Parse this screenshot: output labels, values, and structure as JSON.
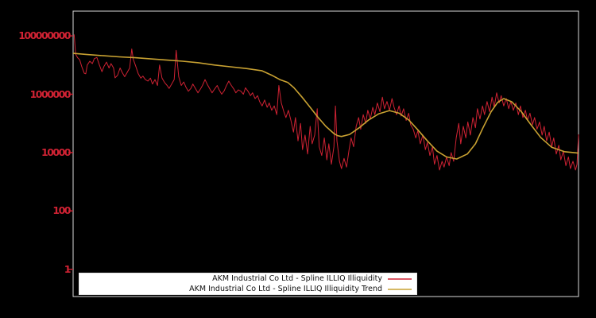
{
  "figure": {
    "background_color": "#000000",
    "plot_border_color": "#d9d9d9",
    "tick_color": "#cf2233",
    "legend_background": "#ffffff"
  },
  "chart_data": {
    "type": "line",
    "title": "",
    "xlabel": "",
    "ylabel": "",
    "yscale": "log",
    "x_axis_labels_visible": false,
    "grid": false,
    "legend_position": "lower center",
    "ylim_log10": [
      -0.94,
      8.84
    ],
    "yticks": [
      {
        "label": "100000000",
        "log10": 8
      },
      {
        "label": "1000000",
        "log10": 6
      },
      {
        "label": "10000",
        "log10": 4
      },
      {
        "label": "100",
        "log10": 2
      },
      {
        "label": "1",
        "log10": 0
      }
    ],
    "series": [
      {
        "name": "AKM Industrial Co Ltd - Spline ILLIQ Illiquidity",
        "color": "#cf2233",
        "width": 1,
        "points_t_log10": [
          [
            0.002,
            8.05
          ],
          [
            0.005,
            7.37
          ],
          [
            0.009,
            7.25
          ],
          [
            0.013,
            7.18
          ],
          [
            0.017,
            6.95
          ],
          [
            0.022,
            6.72
          ],
          [
            0.025,
            6.7
          ],
          [
            0.028,
            7.0
          ],
          [
            0.033,
            7.13
          ],
          [
            0.038,
            7.05
          ],
          [
            0.042,
            7.22
          ],
          [
            0.047,
            7.26
          ],
          [
            0.052,
            7.0
          ],
          [
            0.057,
            6.77
          ],
          [
            0.061,
            6.95
          ],
          [
            0.066,
            7.1
          ],
          [
            0.071,
            6.9
          ],
          [
            0.075,
            7.05
          ],
          [
            0.08,
            6.9
          ],
          [
            0.083,
            6.56
          ],
          [
            0.088,
            6.65
          ],
          [
            0.093,
            6.9
          ],
          [
            0.097,
            6.75
          ],
          [
            0.102,
            6.6
          ],
          [
            0.107,
            6.75
          ],
          [
            0.112,
            6.9
          ],
          [
            0.116,
            7.55
          ],
          [
            0.119,
            7.2
          ],
          [
            0.124,
            6.95
          ],
          [
            0.129,
            6.7
          ],
          [
            0.134,
            6.55
          ],
          [
            0.138,
            6.62
          ],
          [
            0.143,
            6.5
          ],
          [
            0.148,
            6.45
          ],
          [
            0.153,
            6.55
          ],
          [
            0.157,
            6.35
          ],
          [
            0.162,
            6.5
          ],
          [
            0.167,
            6.3
          ],
          [
            0.171,
            7.0
          ],
          [
            0.176,
            6.55
          ],
          [
            0.181,
            6.4
          ],
          [
            0.186,
            6.3
          ],
          [
            0.19,
            6.2
          ],
          [
            0.195,
            6.35
          ],
          [
            0.2,
            6.5
          ],
          [
            0.204,
            7.5
          ],
          [
            0.209,
            6.6
          ],
          [
            0.214,
            6.3
          ],
          [
            0.219,
            6.42
          ],
          [
            0.223,
            6.25
          ],
          [
            0.228,
            6.1
          ],
          [
            0.233,
            6.2
          ],
          [
            0.237,
            6.35
          ],
          [
            0.242,
            6.2
          ],
          [
            0.247,
            6.05
          ],
          [
            0.252,
            6.18
          ],
          [
            0.256,
            6.3
          ],
          [
            0.261,
            6.5
          ],
          [
            0.266,
            6.32
          ],
          [
            0.27,
            6.2
          ],
          [
            0.275,
            6.05
          ],
          [
            0.28,
            6.18
          ],
          [
            0.285,
            6.3
          ],
          [
            0.289,
            6.15
          ],
          [
            0.294,
            6.0
          ],
          [
            0.299,
            6.12
          ],
          [
            0.303,
            6.28
          ],
          [
            0.308,
            6.45
          ],
          [
            0.313,
            6.3
          ],
          [
            0.318,
            6.18
          ],
          [
            0.322,
            6.05
          ],
          [
            0.327,
            6.15
          ],
          [
            0.332,
            6.1
          ],
          [
            0.337,
            6.0
          ],
          [
            0.341,
            6.22
          ],
          [
            0.346,
            6.1
          ],
          [
            0.351,
            5.95
          ],
          [
            0.355,
            6.05
          ],
          [
            0.36,
            5.85
          ],
          [
            0.365,
            5.95
          ],
          [
            0.369,
            5.75
          ],
          [
            0.374,
            5.6
          ],
          [
            0.379,
            5.8
          ],
          [
            0.384,
            5.55
          ],
          [
            0.388,
            5.7
          ],
          [
            0.393,
            5.45
          ],
          [
            0.398,
            5.6
          ],
          [
            0.403,
            5.3
          ],
          [
            0.407,
            6.3
          ],
          [
            0.412,
            5.7
          ],
          [
            0.417,
            5.4
          ],
          [
            0.421,
            5.2
          ],
          [
            0.426,
            5.45
          ],
          [
            0.431,
            5.1
          ],
          [
            0.436,
            4.7
          ],
          [
            0.44,
            5.2
          ],
          [
            0.445,
            4.4
          ],
          [
            0.45,
            5.0
          ],
          [
            0.454,
            4.1
          ],
          [
            0.459,
            4.6
          ],
          [
            0.464,
            3.95
          ],
          [
            0.469,
            4.9
          ],
          [
            0.473,
            4.3
          ],
          [
            0.478,
            4.6
          ],
          [
            0.483,
            5.5
          ],
          [
            0.487,
            4.2
          ],
          [
            0.492,
            3.9
          ],
          [
            0.497,
            4.5
          ],
          [
            0.502,
            3.75
          ],
          [
            0.506,
            4.3
          ],
          [
            0.511,
            3.6
          ],
          [
            0.516,
            4.2
          ],
          [
            0.519,
            5.6
          ],
          [
            0.522,
            4.4
          ],
          [
            0.527,
            3.7
          ],
          [
            0.531,
            3.45
          ],
          [
            0.536,
            3.8
          ],
          [
            0.541,
            3.5
          ],
          [
            0.546,
            4.1
          ],
          [
            0.55,
            4.5
          ],
          [
            0.555,
            4.2
          ],
          [
            0.56,
            4.9
          ],
          [
            0.565,
            5.2
          ],
          [
            0.569,
            4.8
          ],
          [
            0.574,
            5.3
          ],
          [
            0.579,
            5.0
          ],
          [
            0.583,
            5.45
          ],
          [
            0.588,
            5.15
          ],
          [
            0.593,
            5.55
          ],
          [
            0.597,
            5.3
          ],
          [
            0.602,
            5.7
          ],
          [
            0.607,
            5.4
          ],
          [
            0.612,
            5.9
          ],
          [
            0.616,
            5.5
          ],
          [
            0.621,
            5.75
          ],
          [
            0.626,
            5.45
          ],
          [
            0.631,
            5.85
          ],
          [
            0.635,
            5.55
          ],
          [
            0.64,
            5.3
          ],
          [
            0.645,
            5.6
          ],
          [
            0.649,
            5.25
          ],
          [
            0.654,
            5.5
          ],
          [
            0.659,
            5.1
          ],
          [
            0.664,
            5.35
          ],
          [
            0.668,
            4.95
          ],
          [
            0.673,
            4.8
          ],
          [
            0.678,
            4.5
          ],
          [
            0.682,
            4.75
          ],
          [
            0.687,
            4.3
          ],
          [
            0.692,
            4.6
          ],
          [
            0.697,
            4.1
          ],
          [
            0.701,
            4.35
          ],
          [
            0.706,
            3.9
          ],
          [
            0.711,
            4.2
          ],
          [
            0.715,
            3.6
          ],
          [
            0.72,
            3.9
          ],
          [
            0.725,
            3.4
          ],
          [
            0.73,
            3.7
          ],
          [
            0.734,
            3.5
          ],
          [
            0.739,
            3.85
          ],
          [
            0.744,
            3.55
          ],
          [
            0.748,
            4.0
          ],
          [
            0.753,
            3.7
          ],
          [
            0.758,
            4.5
          ],
          [
            0.763,
            5.0
          ],
          [
            0.767,
            4.3
          ],
          [
            0.772,
            4.9
          ],
          [
            0.777,
            4.5
          ],
          [
            0.781,
            5.05
          ],
          [
            0.786,
            4.6
          ],
          [
            0.791,
            5.2
          ],
          [
            0.796,
            4.85
          ],
          [
            0.8,
            5.5
          ],
          [
            0.805,
            5.15
          ],
          [
            0.81,
            5.6
          ],
          [
            0.814,
            5.3
          ],
          [
            0.819,
            5.75
          ],
          [
            0.824,
            5.4
          ],
          [
            0.829,
            5.9
          ],
          [
            0.833,
            5.55
          ],
          [
            0.838,
            6.05
          ],
          [
            0.843,
            5.7
          ],
          [
            0.847,
            5.95
          ],
          [
            0.852,
            5.6
          ],
          [
            0.857,
            5.85
          ],
          [
            0.862,
            5.5
          ],
          [
            0.866,
            5.75
          ],
          [
            0.871,
            5.45
          ],
          [
            0.876,
            5.7
          ],
          [
            0.881,
            5.3
          ],
          [
            0.885,
            5.6
          ],
          [
            0.89,
            5.2
          ],
          [
            0.895,
            5.45
          ],
          [
            0.899,
            5.1
          ],
          [
            0.904,
            5.35
          ],
          [
            0.909,
            4.95
          ],
          [
            0.913,
            5.2
          ],
          [
            0.918,
            4.8
          ],
          [
            0.923,
            5.05
          ],
          [
            0.928,
            4.6
          ],
          [
            0.932,
            4.9
          ],
          [
            0.937,
            4.4
          ],
          [
            0.942,
            4.7
          ],
          [
            0.947,
            4.2
          ],
          [
            0.951,
            4.5
          ],
          [
            0.956,
            3.95
          ],
          [
            0.961,
            4.25
          ],
          [
            0.965,
            3.75
          ],
          [
            0.97,
            4.05
          ],
          [
            0.975,
            3.55
          ],
          [
            0.98,
            3.85
          ],
          [
            0.984,
            3.45
          ],
          [
            0.989,
            3.7
          ],
          [
            0.994,
            3.4
          ],
          [
            0.997,
            3.6
          ],
          [
            1.0,
            4.62
          ]
        ]
      },
      {
        "name": "AKM Industrial Co Ltd - Spline ILLIQ Illiquidity Trend",
        "color": "#c9a232",
        "width": 1.6,
        "points_t_log10": [
          [
            0.0,
            7.4
          ],
          [
            0.028,
            7.36
          ],
          [
            0.06,
            7.32
          ],
          [
            0.091,
            7.28
          ],
          [
            0.123,
            7.25
          ],
          [
            0.154,
            7.21
          ],
          [
            0.186,
            7.17
          ],
          [
            0.217,
            7.13
          ],
          [
            0.248,
            7.08
          ],
          [
            0.28,
            7.0
          ],
          [
            0.311,
            6.94
          ],
          [
            0.343,
            6.88
          ],
          [
            0.374,
            6.8
          ],
          [
            0.393,
            6.65
          ],
          [
            0.409,
            6.5
          ],
          [
            0.425,
            6.4
          ],
          [
            0.437,
            6.22
          ],
          [
            0.453,
            5.9
          ],
          [
            0.469,
            5.55
          ],
          [
            0.484,
            5.22
          ],
          [
            0.5,
            4.9
          ],
          [
            0.516,
            4.65
          ],
          [
            0.523,
            4.58
          ],
          [
            0.531,
            4.55
          ],
          [
            0.547,
            4.62
          ],
          [
            0.566,
            4.85
          ],
          [
            0.585,
            5.12
          ],
          [
            0.605,
            5.33
          ],
          [
            0.626,
            5.44
          ],
          [
            0.645,
            5.35
          ],
          [
            0.664,
            5.12
          ],
          [
            0.682,
            4.78
          ],
          [
            0.701,
            4.4
          ],
          [
            0.72,
            4.05
          ],
          [
            0.739,
            3.85
          ],
          [
            0.759,
            3.78
          ],
          [
            0.78,
            3.95
          ],
          [
            0.796,
            4.3
          ],
          [
            0.811,
            4.85
          ],
          [
            0.827,
            5.4
          ],
          [
            0.84,
            5.72
          ],
          [
            0.852,
            5.85
          ],
          [
            0.868,
            5.74
          ],
          [
            0.887,
            5.4
          ],
          [
            0.906,
            4.95
          ],
          [
            0.925,
            4.52
          ],
          [
            0.947,
            4.18
          ],
          [
            0.972,
            4.03
          ],
          [
            1.0,
            3.98
          ]
        ]
      }
    ]
  }
}
